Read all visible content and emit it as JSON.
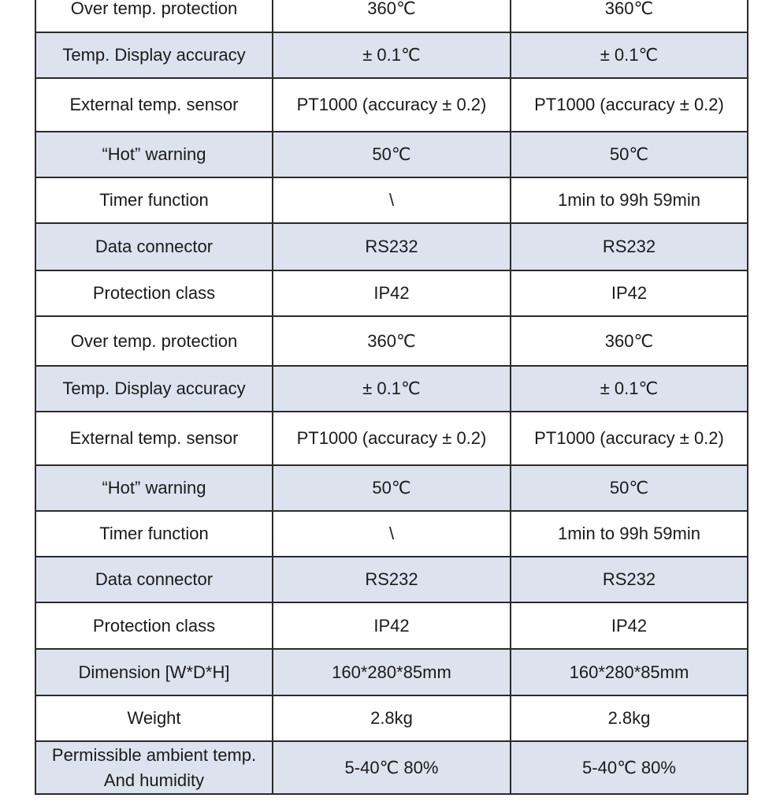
{
  "table": {
    "rows": [
      {
        "label": "Over temp. protection",
        "col1": "360℃",
        "col2": "360℃",
        "shade": "plain",
        "height": 60
      },
      {
        "label": "Temp. Display accuracy",
        "col1": "± 0.1℃",
        "col2": "± 0.1℃",
        "shade": "shaded",
        "height": 58
      },
      {
        "label": "External temp. sensor",
        "col1": "PT1000 (accuracy ± 0.2)",
        "col2": "PT1000 (accuracy ± 0.2)",
        "shade": "plain",
        "height": 68,
        "wrap": true
      },
      {
        "label": "“Hot” warning",
        "col1": "50℃",
        "col2": "50℃",
        "shade": "shaded",
        "height": 58
      },
      {
        "label": "Timer function",
        "col1": "\\",
        "col2": "1min to 99h 59min",
        "shade": "plain",
        "height": 58
      },
      {
        "label": "Data connector",
        "col1": "RS232",
        "col2": "RS232",
        "shade": "shaded",
        "height": 60
      },
      {
        "label": "Protection class",
        "col1": "IP42",
        "col2": "IP42",
        "shade": "plain",
        "height": 58
      },
      {
        "label": "Over temp. protection",
        "col1": "360℃",
        "col2": "360℃",
        "shade": "plain",
        "height": 63
      },
      {
        "label": "Temp. Display accuracy",
        "col1": "± 0.1℃",
        "col2": "± 0.1℃",
        "shade": "shaded",
        "height": 58
      },
      {
        "label": "External temp. sensor",
        "col1": "PT1000 (accuracy ± 0.2)",
        "col2": "PT1000 (accuracy ± 0.2)",
        "shade": "plain",
        "height": 68,
        "wrap": true
      },
      {
        "label": "“Hot” warning",
        "col1": "50℃",
        "col2": "50℃",
        "shade": "shaded",
        "height": 58
      },
      {
        "label": "Timer function",
        "col1": "\\",
        "col2": "1min to 99h 59min",
        "shade": "plain",
        "height": 58
      },
      {
        "label": "Data connector",
        "col1": "RS232",
        "col2": "RS232",
        "shade": "shaded",
        "height": 58
      },
      {
        "label": "Protection class",
        "col1": "IP42",
        "col2": "IP42",
        "shade": "plain",
        "height": 59
      },
      {
        "label": "Dimension [W*D*H]",
        "col1": "160*280*85mm",
        "col2": "160*280*85mm",
        "shade": "shaded",
        "height": 59
      },
      {
        "label": "Weight",
        "col1": "2.8kg",
        "col2": "2.8kg",
        "shade": "plain",
        "height": 58
      },
      {
        "label": "Permissible ambient temp. And humidity",
        "col1": "5-40℃ 80%",
        "col2": "5-40℃ 80%",
        "shade": "shaded",
        "height": 67
      }
    ]
  }
}
